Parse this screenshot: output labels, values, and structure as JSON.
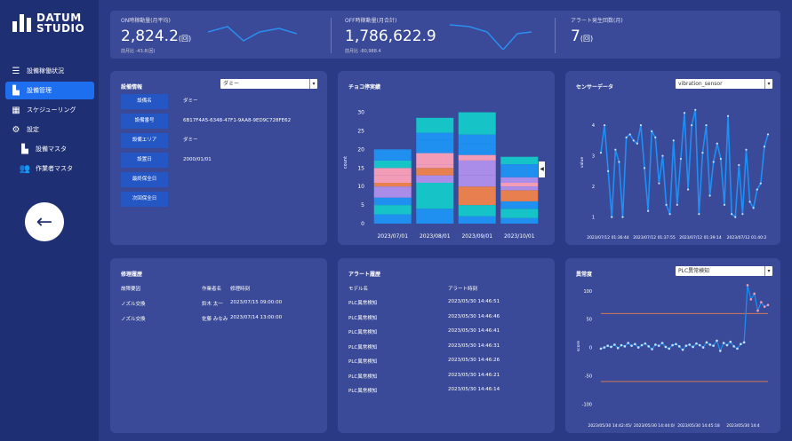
{
  "sidebar": {
    "logo_line1": "DATUM",
    "logo_line2": "STUDIO",
    "items": [
      {
        "label": "設備稼働状況",
        "icon": "menu-icon",
        "glyph": "☰"
      },
      {
        "label": "設備管理",
        "icon": "factory-icon",
        "glyph": "▙",
        "active": true
      },
      {
        "label": "スケジューリング",
        "icon": "calendar-icon",
        "glyph": "▦"
      },
      {
        "label": "設定",
        "icon": "gear-icon",
        "glyph": "⚙"
      },
      {
        "label": "設備マスタ",
        "icon": "factory-icon",
        "glyph": "▙",
        "sub": true
      },
      {
        "label": "作業者マスタ",
        "icon": "users-icon",
        "glyph": "👥",
        "sub": true
      }
    ],
    "back_glyph": "←"
  },
  "kpis": [
    {
      "label": "ON時稼動量(月平均)",
      "value": "2,824.2",
      "unit": "(回)",
      "sub": "前月比 -43.8(回)"
    },
    {
      "label": "OFF時稼動量(月合計)",
      "value": "1,786,622.9",
      "unit": "",
      "sub": "前月比 -80,988.4"
    },
    {
      "label": "アラート発生回数(月)",
      "value": "7",
      "unit": "(回)",
      "sub": ""
    }
  ],
  "equipment": {
    "title": "設備情報",
    "select": "ダミー",
    "rows": [
      {
        "label": "設備名",
        "value": "ダミー"
      },
      {
        "label": "設備番号",
        "value": "6B17F4A5-6348-47F1-9AA8-9ED9C728FE62"
      },
      {
        "label": "設備エリア",
        "value": "ダミー"
      },
      {
        "label": "設置日",
        "value": "2000/01/01"
      },
      {
        "label": "最終保全日",
        "value": ""
      },
      {
        "label": "次回保全日",
        "value": ""
      }
    ]
  },
  "chocolate": {
    "title": "チョコ停実績",
    "chart_data": {
      "type": "bar",
      "stacked": true,
      "categories": [
        "2023/07/01",
        "2023/08/01",
        "2023/09/01",
        "2023/10/01"
      ],
      "ylabel": "count",
      "ylim": [
        0,
        33
      ],
      "yticks": [
        0,
        5,
        10,
        15,
        20,
        25,
        30
      ],
      "segments": [
        [
          {
            "v": 2.5,
            "c": "#1f8ff0"
          },
          {
            "v": 2.5,
            "c": "#16c3c6"
          },
          {
            "v": 2,
            "c": "#1f8ff0"
          },
          {
            "v": 3,
            "c": "#a98de8"
          },
          {
            "v": 1,
            "c": "#e77f4e"
          },
          {
            "v": 2,
            "c": "#f39cb8"
          },
          {
            "v": 2,
            "c": "#f39cb8"
          },
          {
            "v": 2,
            "c": "#16c3c6"
          },
          {
            "v": 3,
            "c": "#1f8ff0"
          }
        ],
        [
          {
            "v": 2.5,
            "c": "#1f8ff0"
          },
          {
            "v": 1.5,
            "c": "#1f8ff0"
          },
          {
            "v": 7,
            "c": "#16c3c6"
          },
          {
            "v": 2,
            "c": "#a98de8"
          },
          {
            "v": 2,
            "c": "#e77f4e"
          },
          {
            "v": 1,
            "c": "#f39cb8"
          },
          {
            "v": 3,
            "c": "#f39cb8"
          },
          {
            "v": 3.5,
            "c": "#1f8ff0"
          },
          {
            "v": 2,
            "c": "#1f8ff0"
          },
          {
            "v": 4,
            "c": "#16c3c6"
          }
        ],
        [
          {
            "v": 2,
            "c": "#1f8ff0"
          },
          {
            "v": 3,
            "c": "#16c3c6"
          },
          {
            "v": 5,
            "c": "#e77f4e"
          },
          {
            "v": 3,
            "c": "#a98de8"
          },
          {
            "v": 4,
            "c": "#a98de8"
          },
          {
            "v": 1.5,
            "c": "#f39cb8"
          },
          {
            "v": 3,
            "c": "#1f8ff0"
          },
          {
            "v": 2.5,
            "c": "#1f8ff0"
          },
          {
            "v": 3.5,
            "c": "#16c3c6"
          },
          {
            "v": 2.5,
            "c": "#16c3c6"
          }
        ],
        [
          {
            "v": 1.5,
            "c": "#1f8ff0"
          },
          {
            "v": 2.5,
            "c": "#16c3c6"
          },
          {
            "v": 2,
            "c": "#1f8ff0"
          },
          {
            "v": 3,
            "c": "#e77f4e"
          },
          {
            "v": 1,
            "c": "#a98de8"
          },
          {
            "v": 1,
            "c": "#f39cb8"
          },
          {
            "v": 1.5,
            "c": "#a98de8"
          },
          {
            "v": 1.5,
            "c": "#1f8ff0"
          },
          {
            "v": 2,
            "c": "#1f8ff0"
          },
          {
            "v": 2,
            "c": "#16c3c6"
          }
        ]
      ]
    }
  },
  "sensor": {
    "title": "センサーデータ",
    "select": "vibration_sensor",
    "chart_data": {
      "type": "line",
      "ylabel": "value",
      "ylim": [
        0.7,
        4.9
      ],
      "yticks": [
        1,
        2,
        3,
        4
      ],
      "xticks": [
        "2023/07/12 01:36:44",
        "2023/07/12 01:37:55",
        "2023/07/12 01:39:14",
        "2023/07/12 01:40:2"
      ],
      "values": [
        3.1,
        4,
        2.5,
        1,
        3.2,
        2.8,
        1,
        3.6,
        3.7,
        3.5,
        3.4,
        4,
        2.6,
        1.2,
        3.8,
        3.6,
        2.1,
        3,
        1.4,
        1.1,
        3.5,
        1.4,
        2.9,
        4.4,
        1.9,
        4,
        4.5,
        1.1,
        3.1,
        4,
        1.7,
        2.8,
        3.4,
        2.9,
        1.4,
        4.3,
        1.1,
        1,
        2.7,
        1.1,
        3.2,
        1.5,
        1.3,
        1.9,
        2.1,
        3.3,
        3.7
      ]
    }
  },
  "repair": {
    "title": "修理履歴",
    "headers": [
      "故障要因",
      "作業者名",
      "修理時刻"
    ],
    "rows": [
      [
        "ノズル交換",
        "鈴木 太一",
        "2023/07/15 09:00:00"
      ],
      [
        "ノズル交換",
        "佐藤 みなみ",
        "2023/07/14 13:00:00"
      ]
    ]
  },
  "alert": {
    "title": "アラート履歴",
    "headers": [
      "モデル名",
      "アラート時刻"
    ],
    "rows": [
      [
        "PLC異常検知",
        "2023/05/30 14:46:51"
      ],
      [
        "PLC異常検知",
        "2023/05/30 14:46:46"
      ],
      [
        "PLC異常検知",
        "2023/05/30 14:46:41"
      ],
      [
        "PLC異常検知",
        "2023/05/30 14:46:31"
      ],
      [
        "PLC異常検知",
        "2023/05/30 14:46:26"
      ],
      [
        "PLC異常検知",
        "2023/05/30 14:46:21"
      ],
      [
        "PLC異常検知",
        "2023/05/30 14:46:14"
      ]
    ]
  },
  "anomaly": {
    "title": "異常度",
    "select": "PLC異常検知",
    "chart_data": {
      "type": "line",
      "ylabel": "score",
      "ylim": [
        -115,
        120
      ],
      "yticks": [
        100,
        50,
        0,
        -50,
        -100
      ],
      "thresholds": [
        60,
        -60
      ],
      "xticks": [
        "2023/05/30 14:42:45/",
        "2023/05/30 14:44:0/",
        "2023/05/30 14:45:18",
        "2023/05/30 14:4"
      ],
      "values": [
        -2,
        0,
        3,
        1,
        5,
        -1,
        4,
        2,
        8,
        3,
        6,
        0,
        4,
        7,
        2,
        -3,
        5,
        3,
        8,
        1,
        -2,
        4,
        6,
        2,
        -4,
        3,
        5,
        1,
        7,
        4,
        0,
        9,
        5,
        3,
        12,
        -6,
        8,
        4,
        10,
        2,
        -2,
        6,
        9,
        110,
        85,
        95,
        65,
        80,
        72,
        75
      ],
      "anomaly_from": 43
    }
  }
}
